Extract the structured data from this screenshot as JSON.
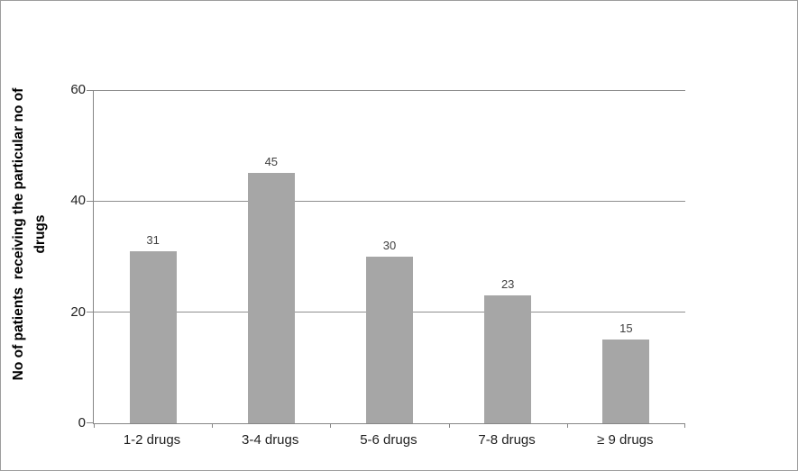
{
  "chart_data": {
    "type": "bar",
    "categories": [
      "1-2 drugs",
      "3-4 drugs",
      "5-6 drugs",
      "7-8 drugs",
      "≥ 9 drugs"
    ],
    "values": [
      31,
      45,
      30,
      23,
      15
    ],
    "data_labels": [
      "31",
      "45",
      "30",
      "23",
      "15"
    ],
    "title": "",
    "xlabel": "",
    "ylabel": "No of patients  receiving the particular no of\ndrugs",
    "ylim": [
      0,
      60
    ],
    "yticks": [
      0,
      20,
      40,
      60
    ],
    "grid": "horizontal-only",
    "legend": "none",
    "bar_color": "#a6a6a6",
    "axis_color": "#868686",
    "gridline_color": "#8e8e8e",
    "text_color": "#1f1f1f",
    "data_label_color": "#3f3f3f",
    "background_color": "#ffffff",
    "border_color": "#9d9d9d"
  }
}
